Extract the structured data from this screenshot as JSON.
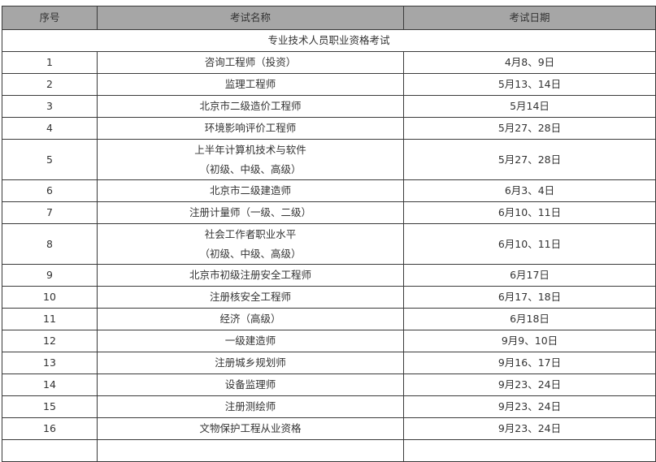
{
  "table": {
    "headers": [
      "序号",
      "考试名称",
      "考试日期"
    ],
    "section": "专业技术人员职业资格考试",
    "rows": [
      {
        "no": "1",
        "name": "咨询工程师（投资）",
        "name2": "",
        "date": "4月8、9日"
      },
      {
        "no": "2",
        "name": "监理工程师",
        "name2": "",
        "date": "5月13、14日"
      },
      {
        "no": "3",
        "name": "北京市二级造价工程师",
        "name2": "",
        "date": "5月14日"
      },
      {
        "no": "4",
        "name": "环境影响评价工程师",
        "name2": "",
        "date": "5月27、28日"
      },
      {
        "no": "5",
        "name": "上半年计算机技术与软件",
        "name2": "（初级、中级、高级）",
        "date": "5月27、28日"
      },
      {
        "no": "6",
        "name": "北京市二级建造师",
        "name2": "",
        "date": "6月3、4日"
      },
      {
        "no": "7",
        "name": "注册计量师（一级、二级）",
        "name2": "",
        "date": "6月10、11日"
      },
      {
        "no": "8",
        "name": "社会工作者职业水平",
        "name2": "（初级、中级、高级）",
        "date": "6月10、11日"
      },
      {
        "no": "9",
        "name": "北京市初级注册安全工程师",
        "name2": "",
        "date": "6月17日"
      },
      {
        "no": "10",
        "name": "注册核安全工程师",
        "name2": "",
        "date": "6月17、18日"
      },
      {
        "no": "11",
        "name": "经济（高级）",
        "name2": "",
        "date": "6月18日"
      },
      {
        "no": "12",
        "name": "一级建造师",
        "name2": "",
        "date": "9月9、10日"
      },
      {
        "no": "13",
        "name": "注册城乡规划师",
        "name2": "",
        "date": "9月16、17日"
      },
      {
        "no": "14",
        "name": "设备监理师",
        "name2": "",
        "date": "9月23、24日"
      },
      {
        "no": "15",
        "name": "注册测绘师",
        "name2": "",
        "date": "9月23、24日"
      },
      {
        "no": "16",
        "name": "文物保护工程从业资格",
        "name2": "",
        "date": "9月23、24日"
      }
    ]
  }
}
